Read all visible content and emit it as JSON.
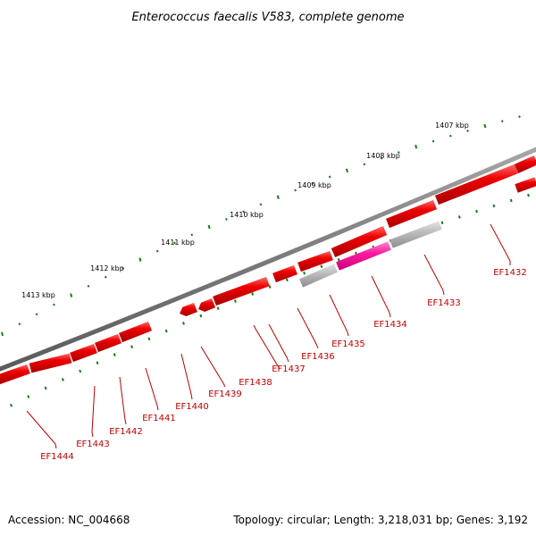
{
  "title": "Enterococcus faecalis V583, complete genome",
  "footer": {
    "accession": "Accession: NC_004668",
    "summary": "Topology: circular; Length: 3,218,031 bp; Genes: 3,192"
  },
  "ticks": [
    "1407 kbp",
    "1408 kbp",
    "1409 kbp",
    "1410 kbp",
    "1411 kbp",
    "1412 kbp",
    "1413 kbp"
  ],
  "genes": [
    "EF1432",
    "EF1433",
    "EF1434",
    "EF1435",
    "EF1436",
    "EF1437",
    "EF1438",
    "EF1439",
    "EF1440",
    "EF1441",
    "EF1442",
    "EF1443",
    "EF1444"
  ],
  "colors": {
    "backbone": "#808080",
    "cds": "#e00000",
    "highlight": "#ff0099",
    "gray": "#b4b4b4",
    "gene_label": "#c00000",
    "tick": "#1a7a1a"
  }
}
